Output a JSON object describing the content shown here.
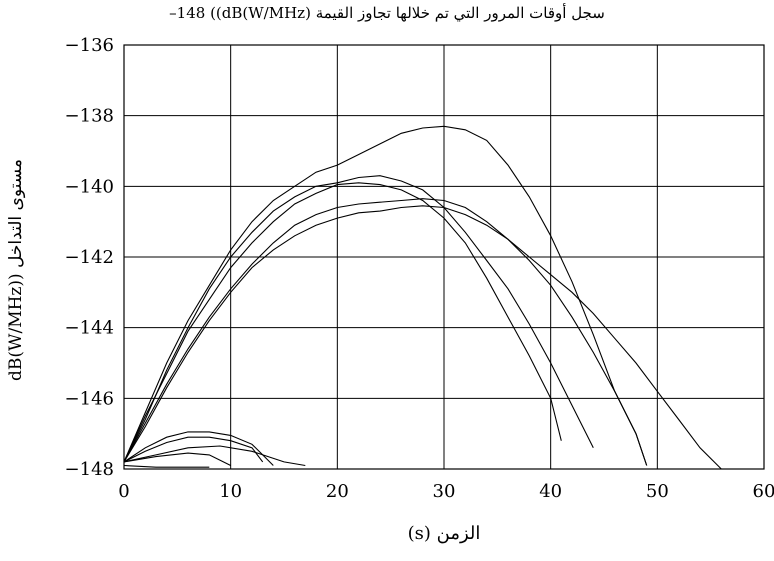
{
  "chart_data": {
    "type": "line",
    "title": "سجل أوقات المرور التي تم خلالها تجاوز القيمة ‎–148 ((dB(W/MHz)",
    "xlabel": "الزمن (s)",
    "ylabel": "مستوى التداخل (dB(W/MHz)",
    "xlim": [
      0,
      60
    ],
    "ylim": [
      -148,
      -136
    ],
    "xticks": [
      0,
      10,
      20,
      30,
      40,
      50,
      60
    ],
    "yticks": [
      -136,
      -138,
      -140,
      -142,
      -144,
      -146,
      -148
    ],
    "ytick_labels": [
      "−136",
      "−138",
      "−140",
      "−142",
      "−144",
      "−146",
      "−148"
    ],
    "grid": true,
    "line_color": "#000000",
    "series": [
      {
        "points": [
          [
            0,
            -147.8
          ],
          [
            2,
            -146.4
          ],
          [
            4,
            -145.0
          ],
          [
            6,
            -143.8
          ],
          [
            8,
            -142.8
          ],
          [
            10,
            -141.8
          ],
          [
            12,
            -141.0
          ],
          [
            14,
            -140.4
          ],
          [
            16,
            -140.0
          ],
          [
            18,
            -139.6
          ],
          [
            20,
            -139.4
          ],
          [
            22,
            -139.1
          ],
          [
            24,
            -138.8
          ],
          [
            26,
            -138.5
          ],
          [
            28,
            -138.35
          ],
          [
            30,
            -138.3
          ],
          [
            32,
            -138.4
          ],
          [
            34,
            -138.7
          ],
          [
            36,
            -139.4
          ],
          [
            38,
            -140.3
          ],
          [
            40,
            -141.4
          ],
          [
            42,
            -142.7
          ],
          [
            44,
            -144.2
          ],
          [
            46,
            -145.8
          ],
          [
            48,
            -147.0
          ],
          [
            49,
            -147.9
          ]
        ]
      },
      {
        "points": [
          [
            0,
            -147.8
          ],
          [
            2,
            -146.6
          ],
          [
            4,
            -145.2
          ],
          [
            6,
            -144.0
          ],
          [
            8,
            -142.9
          ],
          [
            10,
            -142.0
          ],
          [
            12,
            -141.3
          ],
          [
            14,
            -140.7
          ],
          [
            16,
            -140.3
          ],
          [
            18,
            -140.0
          ],
          [
            20,
            -139.9
          ],
          [
            22,
            -139.75
          ],
          [
            24,
            -139.7
          ],
          [
            26,
            -139.85
          ],
          [
            28,
            -140.1
          ],
          [
            30,
            -140.6
          ],
          [
            32,
            -141.3
          ],
          [
            34,
            -142.1
          ],
          [
            36,
            -142.9
          ],
          [
            38,
            -143.9
          ],
          [
            40,
            -145.0
          ],
          [
            42,
            -146.2
          ],
          [
            44,
            -147.4
          ]
        ]
      },
      {
        "points": [
          [
            0,
            -147.8
          ],
          [
            2,
            -146.5
          ],
          [
            4,
            -145.3
          ],
          [
            6,
            -144.1
          ],
          [
            8,
            -143.2
          ],
          [
            10,
            -142.3
          ],
          [
            12,
            -141.6
          ],
          [
            14,
            -141.0
          ],
          [
            16,
            -140.5
          ],
          [
            18,
            -140.2
          ],
          [
            20,
            -139.95
          ],
          [
            22,
            -139.9
          ],
          [
            24,
            -139.95
          ],
          [
            26,
            -140.1
          ],
          [
            28,
            -140.4
          ],
          [
            30,
            -140.9
          ],
          [
            32,
            -141.6
          ],
          [
            34,
            -142.6
          ],
          [
            36,
            -143.7
          ],
          [
            38,
            -144.8
          ],
          [
            40,
            -146.0
          ],
          [
            41,
            -147.2
          ]
        ]
      },
      {
        "points": [
          [
            0,
            -147.8
          ],
          [
            2,
            -146.7
          ],
          [
            4,
            -145.6
          ],
          [
            6,
            -144.6
          ],
          [
            8,
            -143.7
          ],
          [
            10,
            -142.9
          ],
          [
            12,
            -142.2
          ],
          [
            14,
            -141.6
          ],
          [
            16,
            -141.1
          ],
          [
            18,
            -140.8
          ],
          [
            20,
            -140.6
          ],
          [
            22,
            -140.5
          ],
          [
            24,
            -140.45
          ],
          [
            26,
            -140.4
          ],
          [
            28,
            -140.35
          ],
          [
            30,
            -140.4
          ],
          [
            32,
            -140.6
          ],
          [
            34,
            -141.0
          ],
          [
            36,
            -141.5
          ],
          [
            38,
            -142.1
          ],
          [
            40,
            -142.8
          ],
          [
            42,
            -143.7
          ],
          [
            44,
            -144.7
          ],
          [
            46,
            -145.8
          ],
          [
            48,
            -147.0
          ],
          [
            49,
            -147.9
          ]
        ]
      },
      {
        "points": [
          [
            0,
            -147.8
          ],
          [
            2,
            -146.8
          ],
          [
            4,
            -145.7
          ],
          [
            6,
            -144.7
          ],
          [
            8,
            -143.8
          ],
          [
            10,
            -143.0
          ],
          [
            12,
            -142.3
          ],
          [
            14,
            -141.8
          ],
          [
            16,
            -141.4
          ],
          [
            18,
            -141.1
          ],
          [
            20,
            -140.9
          ],
          [
            22,
            -140.75
          ],
          [
            24,
            -140.7
          ],
          [
            26,
            -140.6
          ],
          [
            28,
            -140.55
          ],
          [
            30,
            -140.6
          ],
          [
            32,
            -140.8
          ],
          [
            34,
            -141.1
          ],
          [
            36,
            -141.5
          ],
          [
            38,
            -142.0
          ],
          [
            40,
            -142.5
          ],
          [
            42,
            -143.0
          ],
          [
            44,
            -143.6
          ],
          [
            46,
            -144.3
          ],
          [
            48,
            -145.0
          ],
          [
            50,
            -145.8
          ],
          [
            52,
            -146.6
          ],
          [
            54,
            -147.4
          ],
          [
            56,
            -148.0
          ]
        ]
      },
      {
        "points": [
          [
            0,
            -147.8
          ],
          [
            2,
            -147.4
          ],
          [
            4,
            -147.1
          ],
          [
            6,
            -146.95
          ],
          [
            8,
            -146.95
          ],
          [
            10,
            -147.05
          ],
          [
            12,
            -147.3
          ],
          [
            13,
            -147.6
          ],
          [
            14,
            -147.9
          ]
        ]
      },
      {
        "points": [
          [
            0,
            -147.8
          ],
          [
            2,
            -147.5
          ],
          [
            4,
            -147.25
          ],
          [
            6,
            -147.1
          ],
          [
            8,
            -147.1
          ],
          [
            10,
            -147.2
          ],
          [
            12,
            -147.4
          ],
          [
            13,
            -147.8
          ]
        ]
      },
      {
        "points": [
          [
            0,
            -147.8
          ],
          [
            3,
            -147.6
          ],
          [
            6,
            -147.4
          ],
          [
            9,
            -147.35
          ],
          [
            12,
            -147.5
          ],
          [
            15,
            -147.8
          ],
          [
            17,
            -147.9
          ]
        ]
      },
      {
        "points": [
          [
            0,
            -147.8
          ],
          [
            3,
            -147.65
          ],
          [
            6,
            -147.55
          ],
          [
            8,
            -147.6
          ],
          [
            10,
            -147.9
          ]
        ]
      },
      {
        "points": [
          [
            0,
            -147.9
          ],
          [
            3,
            -147.95
          ],
          [
            6,
            -147.95
          ],
          [
            8,
            -147.95
          ]
        ]
      }
    ]
  }
}
